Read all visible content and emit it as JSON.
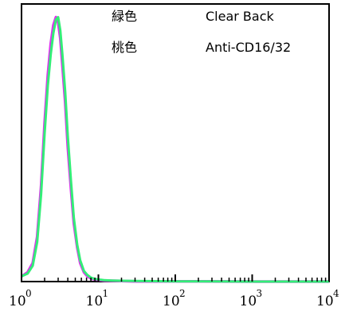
{
  "chart_data": {
    "type": "line",
    "title": "",
    "xlabel": "",
    "ylabel": "",
    "x_scale": "log",
    "xlim": [
      1,
      10000
    ],
    "ylim": [
      0,
      1.05
    ],
    "grid": false,
    "legend_position": "top-right",
    "legend": [
      {
        "color_name": "緑色",
        "label": "Clear Back",
        "color": "#33ee77"
      },
      {
        "color_name": "桃色",
        "label": "Anti-CD16/32",
        "color": "#dd33ee"
      }
    ],
    "x_ticks": [
      {
        "base": "10",
        "exp": "0"
      },
      {
        "base": "10",
        "exp": "1"
      },
      {
        "base": "10",
        "exp": "2"
      },
      {
        "base": "10",
        "exp": "3"
      },
      {
        "base": "10",
        "exp": "4"
      }
    ],
    "series": [
      {
        "name": "Clear Back",
        "color": "#33ee77",
        "x": [
          1.0,
          1.2,
          1.4,
          1.6,
          1.8,
          2.0,
          2.2,
          2.4,
          2.6,
          2.8,
          3.0,
          3.2,
          3.4,
          3.7,
          4.0,
          4.4,
          4.8,
          5.3,
          5.8,
          6.5,
          7.2,
          8.0,
          9.0,
          10.0,
          12.0,
          15.0,
          20.0,
          30.0,
          100.0,
          1000.0,
          10000.0
        ],
        "y": [
          0.02,
          0.03,
          0.06,
          0.15,
          0.33,
          0.56,
          0.74,
          0.86,
          0.94,
          0.99,
          1.0,
          0.95,
          0.86,
          0.72,
          0.55,
          0.38,
          0.24,
          0.14,
          0.08,
          0.04,
          0.025,
          0.015,
          0.01,
          0.008,
          0.005,
          0.004,
          0.003,
          0.002,
          0.001,
          0.0,
          0.0
        ]
      },
      {
        "name": "Anti-CD16/32",
        "color": "#dd33ee",
        "x": [
          1.0,
          1.2,
          1.4,
          1.6,
          1.8,
          2.0,
          2.2,
          2.4,
          2.6,
          2.8,
          3.0,
          3.2,
          3.4,
          3.7,
          4.0,
          4.4,
          4.8,
          5.3,
          5.8,
          6.5,
          7.2,
          8.0,
          9.0,
          10.0,
          12.0,
          15.0,
          20.0,
          30.0,
          100.0,
          1000.0,
          10000.0
        ],
        "y": [
          0.02,
          0.035,
          0.07,
          0.17,
          0.36,
          0.6,
          0.78,
          0.9,
          0.97,
          1.0,
          0.98,
          0.92,
          0.82,
          0.68,
          0.51,
          0.35,
          0.22,
          0.13,
          0.07,
          0.035,
          0.02,
          0.012,
          0.008,
          0.006,
          0.004,
          0.003,
          0.002,
          0.001,
          0.001,
          0.0,
          0.0
        ]
      }
    ]
  }
}
